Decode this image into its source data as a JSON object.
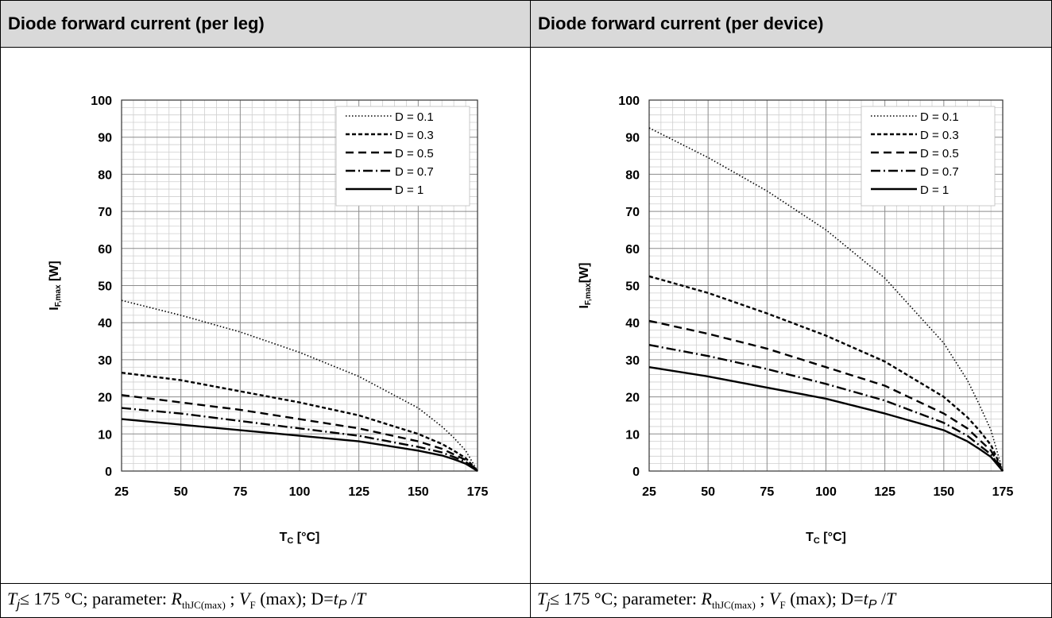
{
  "panels": [
    {
      "header": "Diode forward current (per leg)",
      "caption": {
        "tj": "T",
        "tj_sub": "j",
        "rest1": "≤ 175 °C; parameter: ",
        "r": "R",
        "r_sub": "thJC(max)",
        "rest2": " ; ",
        "v": "V",
        "v_sub": "F",
        "rest3": " (max); D=",
        "t": "t",
        "t_sub": "P",
        "rest4": " /",
        "tt": "T"
      }
    },
    {
      "header": "Diode forward current (per device)",
      "caption": {
        "tj": "T",
        "tj_sub": "j",
        "rest1": "≤ 175 °C; parameter: ",
        "r": "R",
        "r_sub": "thJC(max)",
        "rest2": " ; ",
        "v": "V",
        "v_sub": "F",
        "rest3": " (max); D=",
        "t": "t",
        "t_sub": "P",
        "rest4": " /",
        "tt": "T"
      }
    }
  ],
  "chart_data": [
    {
      "type": "line",
      "xlabel_main": "T",
      "xlabel_sub": "C",
      "xlabel_unit": " [°C]",
      "ylabel_main": "I",
      "ylabel_sub": "F,max",
      "ylabel_unit": " [W]",
      "xlim": [
        25,
        175
      ],
      "ylim": [
        0,
        100
      ],
      "xticks": [
        25,
        50,
        75,
        100,
        125,
        150,
        175
      ],
      "yticks": [
        0,
        10,
        20,
        30,
        40,
        50,
        60,
        70,
        80,
        90,
        100
      ],
      "grid": true,
      "legend_position": "top-right",
      "x": [
        25,
        50,
        75,
        100,
        125,
        150,
        160,
        165,
        170,
        175
      ],
      "series": [
        {
          "name": "D = 0.1",
          "style": "dotted",
          "values": [
            46,
            42,
            37.5,
            32,
            25.5,
            17,
            12,
            9,
            5.5,
            0
          ]
        },
        {
          "name": "D = 0.3",
          "style": "short-dash",
          "values": [
            26.5,
            24.5,
            21.5,
            18.5,
            15,
            10,
            7.3,
            5.5,
            3.5,
            0
          ]
        },
        {
          "name": "D = 0.5",
          "style": "dash",
          "values": [
            20.5,
            18.5,
            16.5,
            14,
            11.5,
            8,
            6,
            4.5,
            3,
            0
          ]
        },
        {
          "name": "D = 0.7",
          "style": "dash-dot",
          "values": [
            17,
            15.5,
            13.5,
            11.5,
            9.5,
            6.5,
            5,
            3.8,
            2.5,
            0
          ]
        },
        {
          "name": "D = 1",
          "style": "solid",
          "values": [
            14,
            12.5,
            11,
            9.5,
            8,
            5.5,
            4.2,
            3.2,
            2,
            0
          ]
        }
      ]
    },
    {
      "type": "line",
      "xlabel_main": "T",
      "xlabel_sub": "C",
      "xlabel_unit": " [°C]",
      "ylabel_main": "I",
      "ylabel_sub": "F,max",
      "ylabel_unit": "[W]",
      "xlim": [
        25,
        175
      ],
      "ylim": [
        0,
        100
      ],
      "xticks": [
        25,
        50,
        75,
        100,
        125,
        150,
        175
      ],
      "yticks": [
        0,
        10,
        20,
        30,
        40,
        50,
        60,
        70,
        80,
        90,
        100
      ],
      "grid": true,
      "legend_position": "top-right",
      "x": [
        25,
        50,
        75,
        100,
        125,
        150,
        160,
        165,
        170,
        175
      ],
      "series": [
        {
          "name": "D = 0.1",
          "style": "dotted",
          "values": [
            92.5,
            84.5,
            75.5,
            65,
            52,
            34.5,
            24.5,
            18,
            11,
            0
          ]
        },
        {
          "name": "D = 0.3",
          "style": "short-dash",
          "values": [
            52.5,
            48,
            42.5,
            36.5,
            29.5,
            20,
            14.5,
            11,
            7,
            0
          ]
        },
        {
          "name": "D = 0.5",
          "style": "dash",
          "values": [
            40.5,
            37,
            33,
            28,
            23,
            15.5,
            11.5,
            8.5,
            5.5,
            0
          ]
        },
        {
          "name": "D = 0.7",
          "style": "dash-dot",
          "values": [
            34,
            31,
            27.5,
            23.5,
            19,
            13,
            9.5,
            7,
            4.5,
            0
          ]
        },
        {
          "name": "D = 1",
          "style": "solid",
          "values": [
            28,
            25.5,
            22.5,
            19.5,
            15.5,
            11,
            8,
            6,
            3.8,
            0
          ]
        }
      ]
    }
  ]
}
